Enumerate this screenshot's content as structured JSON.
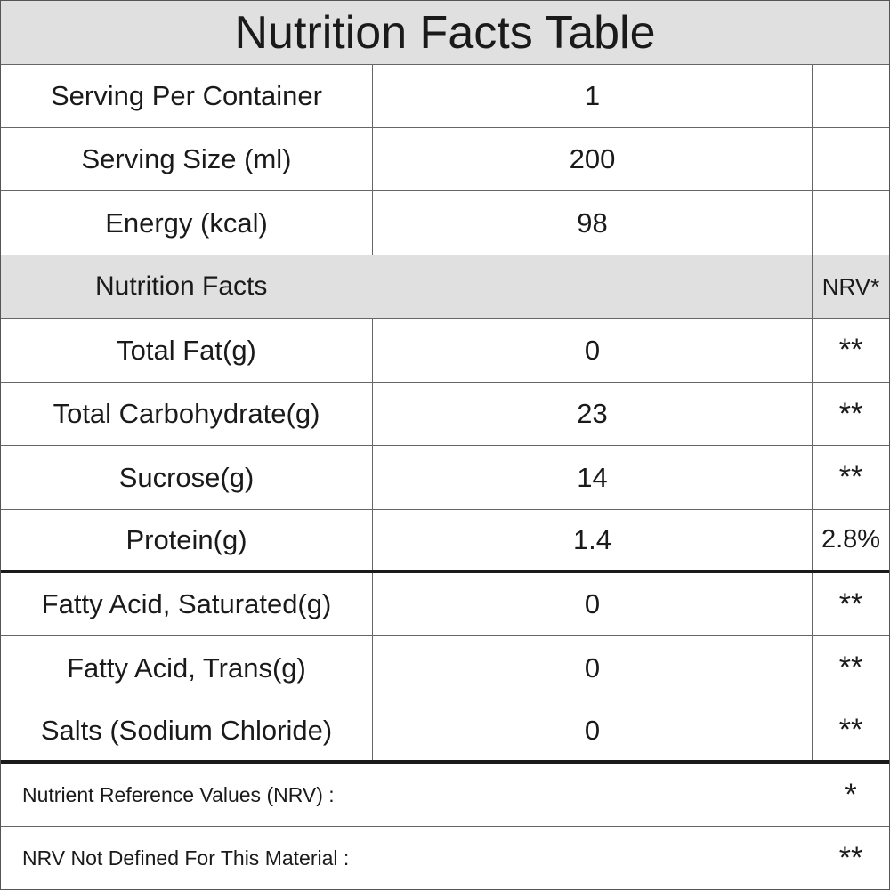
{
  "title": "Nutrition Facts Table",
  "summary_rows": [
    {
      "label": "Serving Per Container",
      "value": "1",
      "nrv": ""
    },
    {
      "label": "Serving Size (ml)",
      "value": "200",
      "nrv": ""
    },
    {
      "label": "Energy (kcal)",
      "value": "98",
      "nrv": ""
    }
  ],
  "section_header": {
    "label": "Nutrition Facts",
    "nrv_label": "NRV*"
  },
  "nutrient_rows": [
    {
      "label": "Total Fat(g)",
      "value": "0",
      "nrv": "**"
    },
    {
      "label": "Total Carbohydrate(g)",
      "value": "23",
      "nrv": "**"
    },
    {
      "label": "Sucrose(g)",
      "value": "14",
      "nrv": "**"
    },
    {
      "label": "Protein(g)",
      "value": "1.4",
      "nrv": "2.8%"
    }
  ],
  "fat_rows": [
    {
      "label": "Fatty Acid, Saturated(g)",
      "value": "0",
      "nrv": "**"
    },
    {
      "label": "Fatty Acid, Trans(g)",
      "value": "0",
      "nrv": "**"
    },
    {
      "label": "Salts (Sodium Chloride)",
      "value": "0",
      "nrv": "**"
    }
  ],
  "footnotes": [
    {
      "text": "Nutrient Reference Values (NRV) :",
      "symbol": "*"
    },
    {
      "text": "NRV Not Defined For This Material :",
      "symbol": "**"
    }
  ]
}
